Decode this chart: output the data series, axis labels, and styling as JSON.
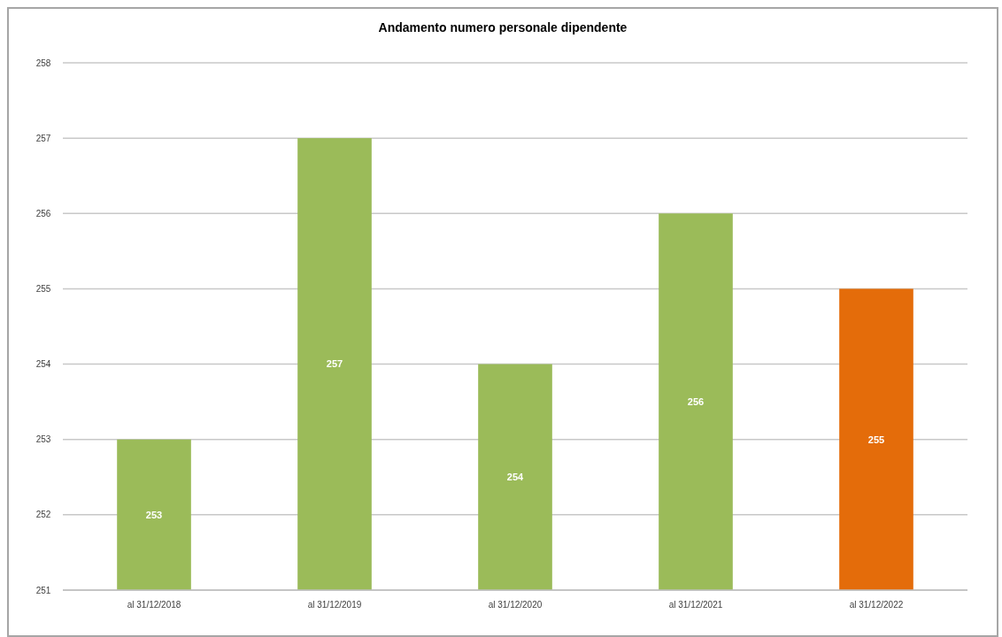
{
  "chart_data": {
    "type": "bar",
    "title": "Andamento numero personale dipendente",
    "categories": [
      "al 31/12/2018",
      "al 31/12/2019",
      "al 31/12/2020",
      "al 31/12/2021",
      "al 31/12/2022"
    ],
    "values": [
      253,
      257,
      254,
      256,
      255
    ],
    "colors": [
      "#9bbb59",
      "#9bbb59",
      "#9bbb59",
      "#9bbb59",
      "#e46c0a"
    ],
    "ylim": [
      251,
      258
    ],
    "yticks": [
      251,
      252,
      253,
      254,
      255,
      256,
      257,
      258
    ],
    "grid": "y",
    "data_labels": true
  }
}
